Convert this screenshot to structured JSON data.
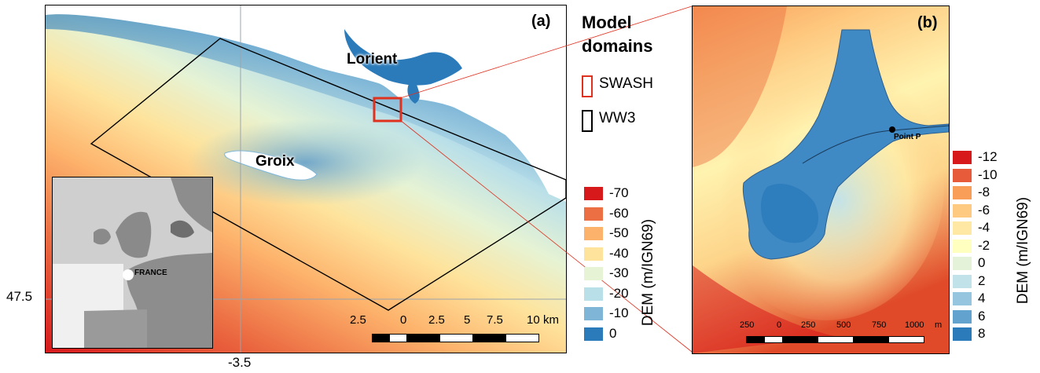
{
  "panel_a": {
    "label": "(a)",
    "places": {
      "lorient": "Lorient",
      "groix": "Groix"
    },
    "inset_label": "FRANCE",
    "scale": {
      "ticks": [
        "2.5",
        "0",
        "2.5",
        "5",
        "7.5",
        "10"
      ],
      "unit": "km"
    },
    "axis": {
      "lat_label": "47.5",
      "lon_label": "-3.5"
    }
  },
  "panel_b": {
    "label": "(b)",
    "point_label": "Point P",
    "scale": {
      "ticks": [
        "250",
        "0",
        "250",
        "500",
        "750",
        "1000"
      ],
      "unit": "m"
    }
  },
  "domains_legend": {
    "title_line1": "Model",
    "title_line2": "domains",
    "items": [
      {
        "label": "SWASH",
        "color": "#e0301e"
      },
      {
        "label": "WW3",
        "color": "#000000"
      }
    ]
  },
  "legend_a": {
    "title": "DEM (m/IGN69)",
    "items": [
      {
        "label": "-70",
        "color": "#d7191c"
      },
      {
        "label": "-60",
        "color": "#ec6e43"
      },
      {
        "label": "-50",
        "color": "#fdb26b"
      },
      {
        "label": "-40",
        "color": "#fee39c"
      },
      {
        "label": "-30",
        "color": "#e6f3d4"
      },
      {
        "label": "-20",
        "color": "#b9dfe9"
      },
      {
        "label": "-10",
        "color": "#7fb6d8"
      },
      {
        "label": "0",
        "color": "#2b7bba"
      }
    ]
  },
  "legend_b": {
    "title": "DEM (m/IGN69)",
    "items": [
      {
        "label": "-12",
        "color": "#d7191c"
      },
      {
        "label": "-10",
        "color": "#e85b3a"
      },
      {
        "label": "-8",
        "color": "#f99e59"
      },
      {
        "label": "-6",
        "color": "#fec980"
      },
      {
        "label": "-4",
        "color": "#ffe8a4"
      },
      {
        "label": "-2",
        "color": "#ffffbf"
      },
      {
        "label": "0",
        "color": "#e3f2d8"
      },
      {
        "label": "2",
        "color": "#c2e2e9"
      },
      {
        "label": "4",
        "color": "#96c5df"
      },
      {
        "label": "6",
        "color": "#61a2ce"
      },
      {
        "label": "8",
        "color": "#2b7bba"
      }
    ]
  }
}
